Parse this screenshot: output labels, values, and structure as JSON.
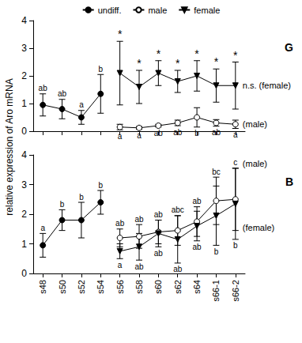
{
  "chart_data": [
    {
      "type": "line",
      "title": "G",
      "ylabel": "relative expression of Aro mRNA",
      "categories": [
        "s48",
        "s50",
        "s52",
        "s54",
        "s56",
        "s58",
        "s60",
        "s62",
        "s64",
        "s66-1",
        "s66-2"
      ],
      "ylim": [
        0,
        4
      ],
      "yticks": [
        0,
        1,
        2,
        3,
        4
      ],
      "legend": "top",
      "tick_labels": "y",
      "series": [
        {
          "name": "undiff.",
          "color": "#000000",
          "marker": "circle",
          "values": [
            0.95,
            0.8,
            0.5,
            1.35,
            null,
            null,
            null,
            null,
            null,
            null,
            null
          ],
          "errors": [
            0.4,
            0.35,
            0.25,
            0.7,
            null,
            null,
            null,
            null,
            null,
            null,
            null
          ],
          "letters": [
            "ab",
            "ab",
            "a",
            "b",
            null,
            null,
            null,
            null,
            null,
            null,
            null
          ]
        },
        {
          "name": "male",
          "color": "#000000",
          "marker": "open_circle",
          "values": [
            null,
            null,
            null,
            null,
            0.15,
            0.12,
            0.2,
            0.3,
            0.5,
            0.3,
            0.25
          ],
          "errors": [
            null,
            null,
            null,
            null,
            0.1,
            0.05,
            0.05,
            0.1,
            0.35,
            0.12,
            0.15
          ],
          "letters": [
            null,
            null,
            null,
            null,
            "a",
            "a",
            "ab",
            "ab",
            "b",
            "ab",
            "a"
          ]
        },
        {
          "name": "female",
          "color": "#000000",
          "marker": "triangle_down",
          "values": [
            null,
            null,
            null,
            null,
            2.1,
            1.6,
            2.1,
            1.8,
            2.0,
            1.65,
            1.65
          ],
          "errors": [
            null,
            null,
            null,
            null,
            1.15,
            0.6,
            0.45,
            0.4,
            0.55,
            0.6,
            0.85
          ],
          "significance": [
            null,
            null,
            null,
            null,
            "*",
            "*",
            "*",
            "*",
            "*",
            "*",
            "*"
          ]
        }
      ],
      "annotations": [
        {
          "text": "n.s. (female)",
          "x": "s66-2",
          "y": 1.65
        },
        {
          "text": "(male)",
          "x": "s66-2",
          "y": 0.25
        }
      ]
    },
    {
      "type": "line",
      "title": "B",
      "categories": [
        "s48",
        "s50",
        "s52",
        "s54",
        "s56",
        "s58",
        "s60",
        "s62",
        "s64",
        "s66-1",
        "s66-2"
      ],
      "ylim": [
        0,
        4
      ],
      "yticks": [
        0,
        1,
        2,
        3,
        4
      ],
      "series": [
        {
          "name": "undiff.",
          "color": "#000000",
          "marker": "circle",
          "values": [
            0.95,
            1.8,
            1.8,
            2.4,
            null,
            null,
            null,
            null,
            null,
            null,
            null
          ],
          "errors": [
            0.4,
            0.35,
            0.6,
            0.4,
            null,
            null,
            null,
            null,
            null,
            null,
            null
          ],
          "letters": [
            "a",
            "b",
            "b",
            "b",
            null,
            null,
            null,
            null,
            null,
            null,
            null
          ]
        },
        {
          "name": "male",
          "color": "#000000",
          "marker": "open_circle",
          "values": [
            null,
            null,
            null,
            null,
            1.2,
            1.25,
            1.4,
            1.45,
            1.75,
            2.45,
            2.5
          ],
          "errors": [
            null,
            null,
            null,
            null,
            0.3,
            0.4,
            0.4,
            0.5,
            0.5,
            0.8,
            1.05
          ],
          "letters": [
            null,
            null,
            null,
            null,
            "ab",
            "ab",
            "ab",
            "abc",
            "ab",
            "bc",
            "c"
          ]
        },
        {
          "name": "female",
          "color": "#000000",
          "marker": "triangle_down",
          "values": [
            null,
            null,
            null,
            null,
            0.75,
            0.9,
            1.35,
            1.15,
            1.6,
            1.95,
            2.35
          ],
          "errors": [
            null,
            null,
            null,
            null,
            0.25,
            0.45,
            0.45,
            0.8,
            0.5,
            1.0,
            1.2
          ],
          "letters": [
            null,
            null,
            null,
            null,
            "a",
            "ab",
            "ab",
            "ab",
            "ab",
            "b",
            "b"
          ]
        }
      ],
      "annotations": [
        {
          "text": "(male)",
          "x": "s66-2",
          "y": 3.7
        },
        {
          "text": "(female)",
          "x": "s66-2",
          "y": 1.55
        }
      ]
    }
  ]
}
